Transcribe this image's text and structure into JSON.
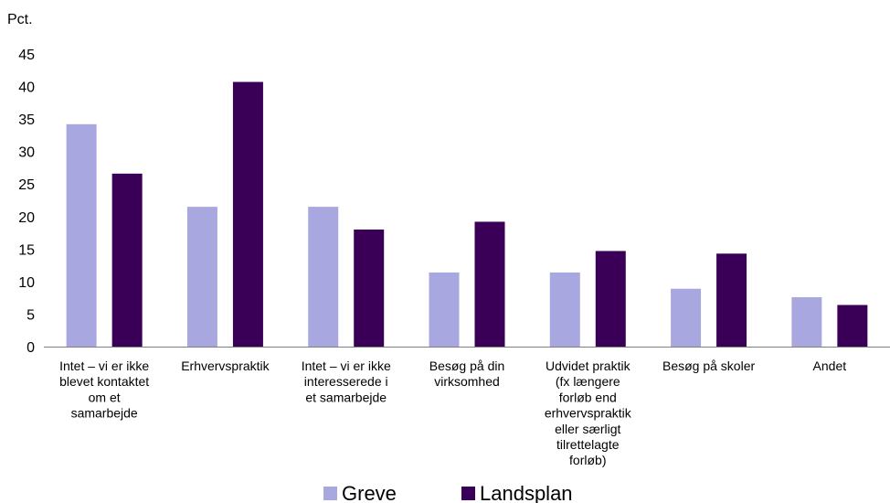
{
  "chart_data": {
    "type": "bar",
    "title": "",
    "ylabel": "Pct.",
    "xlabel": "",
    "ylim": [
      0,
      45
    ],
    "yticks": [
      0,
      5,
      10,
      15,
      20,
      25,
      30,
      35,
      40,
      45
    ],
    "grid": false,
    "legend_position": "bottom",
    "categories": [
      "Intet – vi er ikke blevet kontaktet om et samarbejde",
      "Erhvervspraktik",
      "Intet – vi er ikke interesserede i et samarbejde",
      "Besøg på din virksomhed",
      "Udvidet praktik (fx længere forløb end erhvervspraktik eller særligt tilrettelagte forløb)",
      "Besøg på skoler",
      "Andet"
    ],
    "category_lines": [
      [
        "Intet – vi er ikke",
        "blevet kontaktet",
        "om et",
        "samarbejde"
      ],
      [
        "Erhvervspraktik"
      ],
      [
        "Intet – vi er ikke",
        "interesserede i",
        "et samarbejde"
      ],
      [
        "Besøg på din",
        "virksomhed"
      ],
      [
        "Udvidet praktik",
        "(fx længere",
        "forløb end",
        "erhvervspraktik",
        "eller særligt",
        "tilrettelagte",
        "forløb)"
      ],
      [
        "Besøg på skoler"
      ],
      [
        "Andet"
      ]
    ],
    "series": [
      {
        "name": "Greve",
        "color": "#a9a7e0",
        "values": [
          34.2,
          21.5,
          21.5,
          11.4,
          11.4,
          8.9,
          7.6
        ]
      },
      {
        "name": "Landsplan",
        "color": "#3a0057",
        "values": [
          26.6,
          40.7,
          18.0,
          19.2,
          14.7,
          14.3,
          6.4
        ]
      }
    ]
  }
}
